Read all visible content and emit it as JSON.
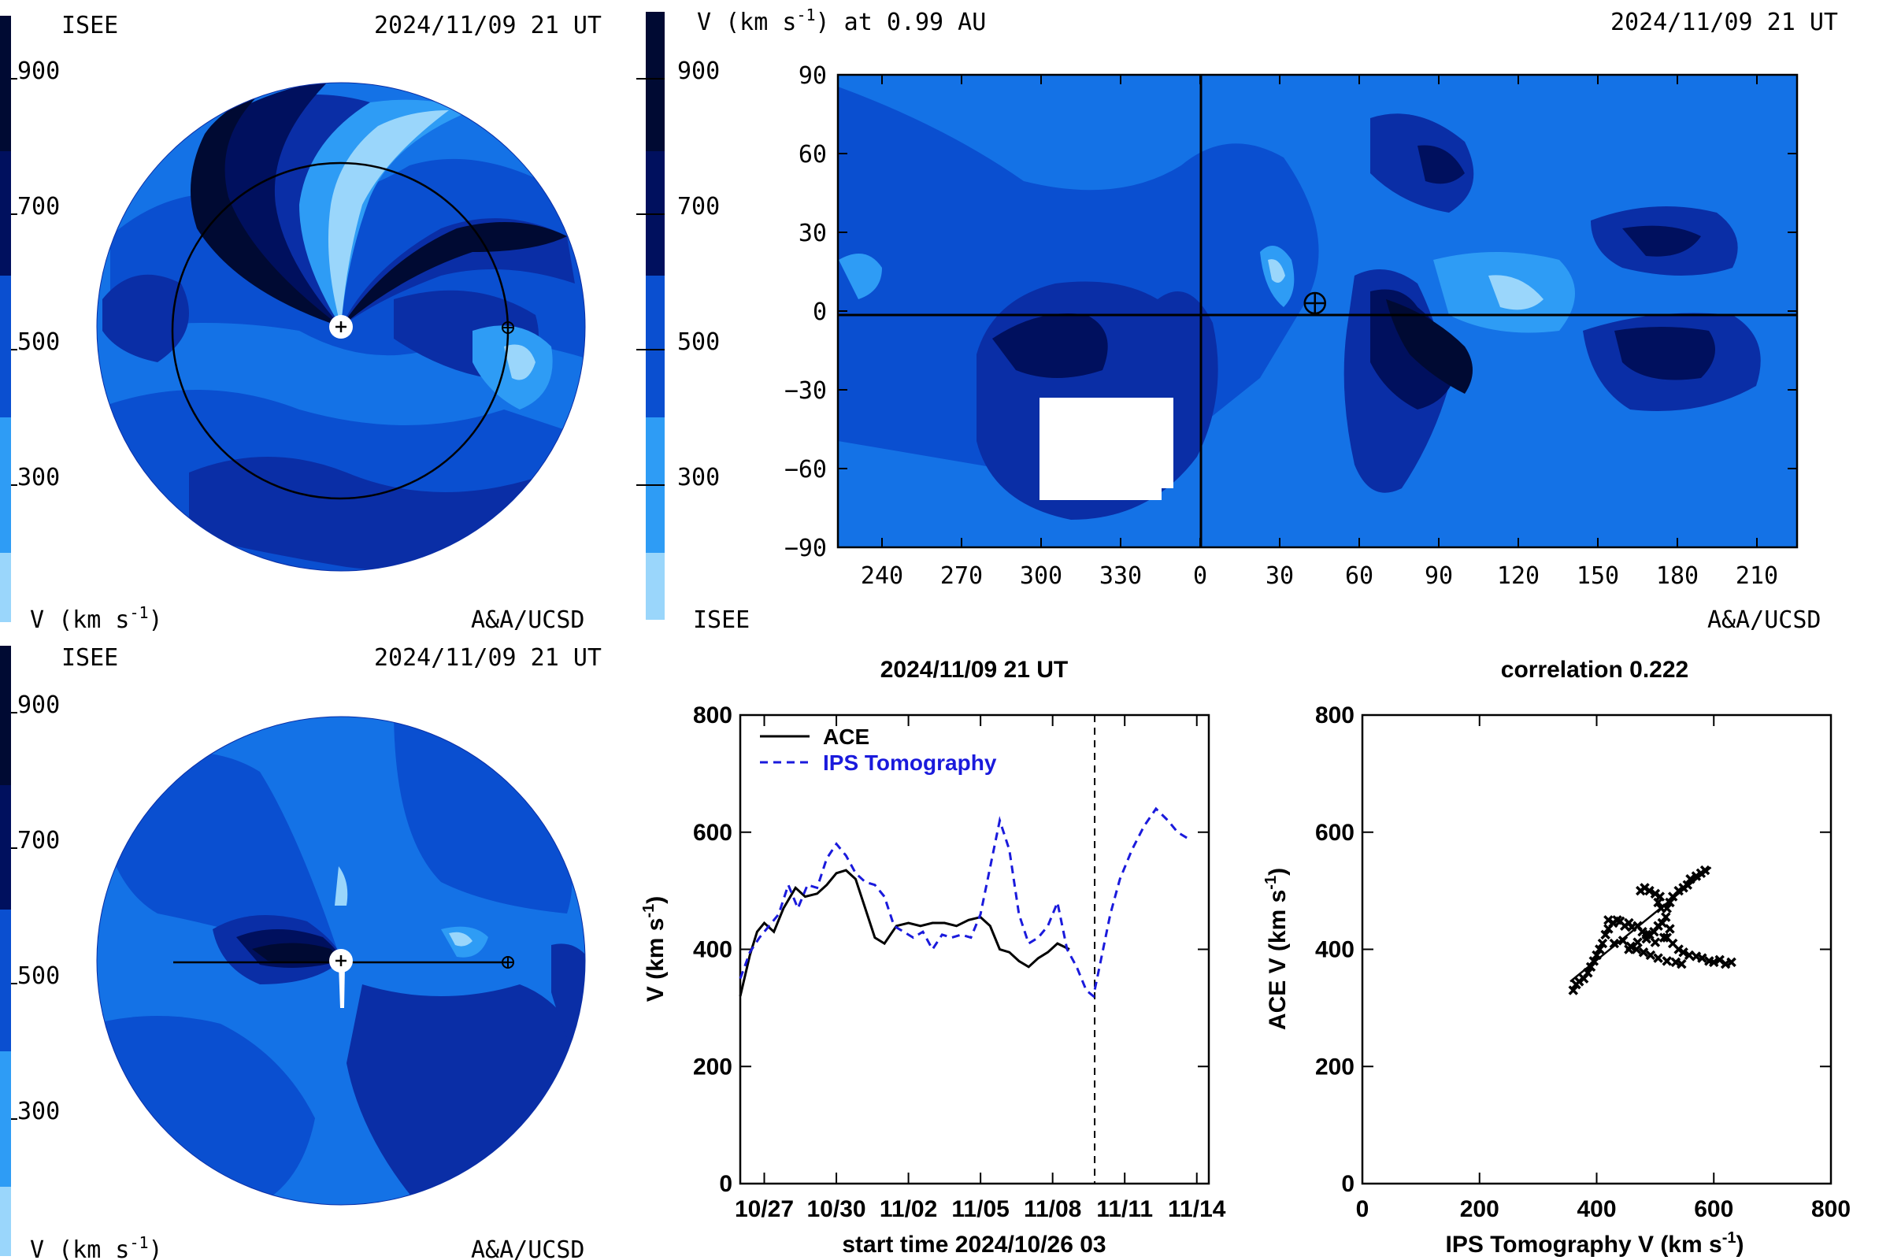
{
  "panel_top_left": {
    "left_label": "ISEE",
    "datetime": "2024/11/09 21 UT",
    "colorbar_ticks": [
      "900",
      "700",
      "500",
      "300"
    ],
    "unit_label": "V (km s",
    "unit_sup": "-1",
    "credit": "A&A/UCSD"
  },
  "panel_top_right": {
    "title": "V (km s",
    "title_sup": "-1",
    "title_tail": ") at 0.99 AU",
    "datetime": "2024/11/09 21 UT",
    "colorbar_ticks": [
      "900",
      "700",
      "500",
      "300"
    ],
    "bottom_left_label": "ISEE",
    "credit": "A&A/UCSD"
  },
  "panel_bottom_left": {
    "left_label": "ISEE",
    "datetime": "2024/11/09 21 UT",
    "colorbar_ticks": [
      "900",
      "700",
      "500",
      "300"
    ],
    "unit_label": "V (km s",
    "unit_sup": "-1",
    "credit": "A&A/UCSD"
  },
  "colors": {
    "level_1": "#000a33",
    "level_2": "#00105e",
    "level_3": "#0a2ea6",
    "level_4": "#0a4fd0",
    "level_5": "#1472e6",
    "level_6": "#2e9cf5",
    "level_7": "#9ad6fb"
  },
  "chart_data": [
    {
      "type": "heatmap",
      "title": "V (km s-1) at 0.99 AU",
      "x_ticks": [
        "240",
        "270",
        "300",
        "330",
        "0",
        "30",
        "60",
        "90",
        "120",
        "150",
        "180",
        "210"
      ],
      "y_ticks": [
        "90",
        "60",
        "30",
        "0",
        "−30",
        "−60",
        "−90"
      ],
      "ylim": [
        -90,
        90
      ],
      "earth_marker": {
        "longitude": 43,
        "latitude": 3
      }
    },
    {
      "type": "line",
      "title": "2024/11/09 21 UT",
      "xlabel": "start time 2024/10/26 03",
      "ylabel": "V (km s",
      "ylabel_sup": "-1",
      "x_ticks": [
        "10/27",
        "10/30",
        "11/02",
        "11/05",
        "11/08",
        "11/11",
        "11/14"
      ],
      "y_ticks": [
        "0",
        "200",
        "400",
        "600",
        "800"
      ],
      "xlim": [
        0,
        19.5
      ],
      "ylim": [
        0,
        800
      ],
      "current_time_day": 14.75,
      "series": [
        {
          "name": "ACE",
          "color": "#000000",
          "dash": "none",
          "points": [
            [
              0,
              320
            ],
            [
              0.4,
              390
            ],
            [
              0.7,
              430
            ],
            [
              1.0,
              445
            ],
            [
              1.4,
              430
            ],
            [
              1.8,
              470
            ],
            [
              2.3,
              505
            ],
            [
              2.7,
              490
            ],
            [
              3.2,
              495
            ],
            [
              3.6,
              510
            ],
            [
              4.0,
              530
            ],
            [
              4.4,
              535
            ],
            [
              4.8,
              520
            ],
            [
              5.2,
              470
            ],
            [
              5.6,
              420
            ],
            [
              6.0,
              410
            ],
            [
              6.5,
              440
            ],
            [
              7.0,
              445
            ],
            [
              7.5,
              440
            ],
            [
              8.0,
              445
            ],
            [
              8.5,
              445
            ],
            [
              9.0,
              440
            ],
            [
              9.5,
              450
            ],
            [
              10.0,
              455
            ],
            [
              10.4,
              440
            ],
            [
              10.8,
              400
            ],
            [
              11.2,
              395
            ],
            [
              11.6,
              380
            ],
            [
              12.0,
              370
            ],
            [
              12.4,
              385
            ],
            [
              12.8,
              395
            ],
            [
              13.2,
              410
            ],
            [
              13.7,
              400
            ]
          ]
        },
        {
          "name": "IPS Tomography",
          "color": "#1a1adc",
          "dash": "10 7",
          "points": [
            [
              0,
              350
            ],
            [
              0.4,
              395
            ],
            [
              0.8,
              420
            ],
            [
              1.2,
              440
            ],
            [
              1.6,
              460
            ],
            [
              2.0,
              510
            ],
            [
              2.4,
              470
            ],
            [
              2.8,
              510
            ],
            [
              3.2,
              505
            ],
            [
              3.6,
              555
            ],
            [
              4.0,
              580
            ],
            [
              4.4,
              560
            ],
            [
              4.8,
              530
            ],
            [
              5.2,
              515
            ],
            [
              5.6,
              510
            ],
            [
              6.0,
              490
            ],
            [
              6.4,
              440
            ],
            [
              6.8,
              430
            ],
            [
              7.2,
              420
            ],
            [
              7.6,
              430
            ],
            [
              8.0,
              400
            ],
            [
              8.4,
              425
            ],
            [
              8.8,
              420
            ],
            [
              9.2,
              425
            ],
            [
              9.6,
              420
            ],
            [
              10.0,
              460
            ],
            [
              10.4,
              540
            ],
            [
              10.8,
              620
            ],
            [
              11.2,
              570
            ],
            [
              11.6,
              460
            ],
            [
              12.0,
              410
            ],
            [
              12.4,
              420
            ],
            [
              12.8,
              440
            ],
            [
              13.2,
              480
            ],
            [
              13.6,
              400
            ],
            [
              14.0,
              370
            ],
            [
              14.4,
              330
            ],
            [
              14.7,
              320
            ],
            [
              15.0,
              380
            ],
            [
              15.4,
              460
            ],
            [
              15.8,
              520
            ],
            [
              16.3,
              570
            ],
            [
              16.8,
              610
            ],
            [
              17.3,
              640
            ],
            [
              17.8,
              620
            ],
            [
              18.2,
              600
            ],
            [
              18.6,
              590
            ]
          ]
        }
      ]
    },
    {
      "type": "scatter",
      "title": "correlation 0.222",
      "xlabel": "IPS Tomography V (km s",
      "xlabel_sup": "-1",
      "ylabel": "ACE V (km s",
      "ylabel_sup": "-1",
      "x_ticks": [
        "0",
        "200",
        "400",
        "600",
        "800"
      ],
      "y_ticks": [
        "0",
        "200",
        "400",
        "600",
        "800"
      ],
      "xlim": [
        0,
        800
      ],
      "ylim": [
        0,
        800
      ],
      "points": [
        [
          360,
          330
        ],
        [
          365,
          340
        ],
        [
          370,
          345
        ],
        [
          378,
          350
        ],
        [
          385,
          360
        ],
        [
          390,
          370
        ],
        [
          395,
          380
        ],
        [
          400,
          390
        ],
        [
          405,
          400
        ],
        [
          410,
          410
        ],
        [
          415,
          425
        ],
        [
          420,
          435
        ],
        [
          420,
          450
        ],
        [
          428,
          445
        ],
        [
          435,
          450
        ],
        [
          440,
          448
        ],
        [
          448,
          440
        ],
        [
          455,
          445
        ],
        [
          460,
          438
        ],
        [
          470,
          440
        ],
        [
          478,
          430
        ],
        [
          485,
          425
        ],
        [
          490,
          425
        ],
        [
          498,
          430
        ],
        [
          505,
          440
        ],
        [
          512,
          445
        ],
        [
          518,
          455
        ],
        [
          520,
          470
        ],
        [
          525,
          480
        ],
        [
          530,
          490
        ],
        [
          540,
          500
        ],
        [
          548,
          505
        ],
        [
          555,
          510
        ],
        [
          560,
          520
        ],
        [
          570,
          525
        ],
        [
          578,
          530
        ],
        [
          585,
          535
        ],
        [
          475,
          500
        ],
        [
          482,
          505
        ],
        [
          490,
          500
        ],
        [
          500,
          495
        ],
        [
          508,
          490
        ],
        [
          520,
          420
        ],
        [
          530,
          410
        ],
        [
          540,
          400
        ],
        [
          548,
          395
        ],
        [
          558,
          390
        ],
        [
          570,
          388
        ],
        [
          580,
          385
        ],
        [
          592,
          380
        ],
        [
          600,
          378
        ],
        [
          610,
          382
        ],
        [
          620,
          375
        ],
        [
          630,
          378
        ],
        [
          455,
          400
        ],
        [
          468,
          400
        ],
        [
          480,
          395
        ],
        [
          492,
          390
        ],
        [
          505,
          385
        ],
        [
          520,
          380
        ],
        [
          535,
          378
        ],
        [
          545,
          375
        ],
        [
          430,
          410
        ],
        [
          445,
          415
        ],
        [
          458,
          405
        ],
        [
          470,
          412
        ],
        [
          485,
          418
        ],
        [
          500,
          412
        ],
        [
          515,
          420
        ],
        [
          525,
          435
        ],
        [
          510,
          470
        ],
        [
          505,
          480
        ]
      ],
      "fit_line": [
        [
          355,
          345
        ],
        [
          595,
          540
        ]
      ]
    }
  ]
}
